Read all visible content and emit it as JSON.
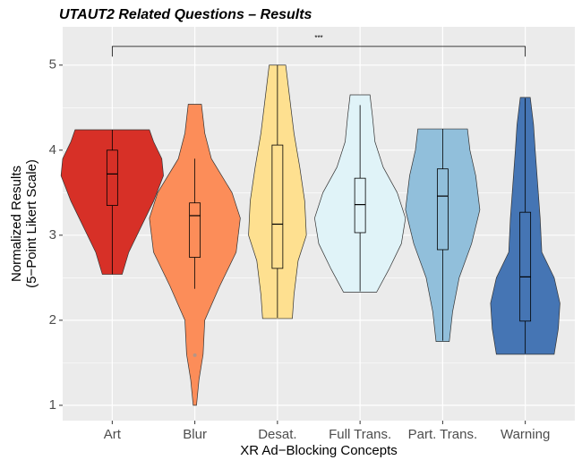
{
  "chart_data": {
    "type": "violin",
    "title": "UTAUT2 Related Questions – Results",
    "xlabel": "XR Ad−Blocking Concepts",
    "ylabel": [
      "Normalized Results",
      "(5−Point Likert Scale)"
    ],
    "categories": [
      "Art",
      "Blur",
      "Desat.",
      "Full Trans.",
      "Part. Trans.",
      "Warning"
    ],
    "ylim": [
      0.82,
      5.45
    ],
    "yticks": [
      1,
      2,
      3,
      4,
      5
    ],
    "grid": true,
    "series": [
      {
        "name": "Art",
        "color": "#d73027",
        "min": 2.54,
        "q1": 3.35,
        "median": 3.72,
        "q3": 4.0,
        "max": 4.24,
        "outliers": [],
        "density_y": [
          2.54,
          2.8,
          3.1,
          3.4,
          3.7,
          3.9,
          4.1,
          4.24
        ],
        "density": [
          0.12,
          0.2,
          0.35,
          0.5,
          0.62,
          0.6,
          0.5,
          0.45
        ]
      },
      {
        "name": "Blur",
        "color": "#fc8d59",
        "min": 2.37,
        "q1": 2.74,
        "median": 3.23,
        "q3": 3.38,
        "max": 3.9,
        "outliers": [
          1.59
        ],
        "density_y": [
          1.0,
          1.3,
          1.6,
          2.0,
          2.4,
          2.8,
          3.2,
          3.5,
          3.9,
          4.2,
          4.54
        ],
        "density": [
          0.02,
          0.05,
          0.1,
          0.12,
          0.3,
          0.5,
          0.55,
          0.45,
          0.2,
          0.12,
          0.08
        ]
      },
      {
        "name": "Desat.",
        "color": "#fee090",
        "min": 2.03,
        "q1": 2.61,
        "median": 3.13,
        "q3": 4.06,
        "max": 5.0,
        "outliers": [],
        "density_y": [
          2.02,
          2.3,
          2.7,
          3.0,
          3.4,
          3.8,
          4.2,
          4.6,
          5.0
        ],
        "density": [
          0.18,
          0.2,
          0.25,
          0.35,
          0.33,
          0.27,
          0.2,
          0.15,
          0.1
        ]
      },
      {
        "name": "Full Trans.",
        "color": "#e0f3f8",
        "min": 2.34,
        "q1": 3.03,
        "median": 3.36,
        "q3": 3.67,
        "max": 4.53,
        "outliers": [],
        "density_y": [
          2.33,
          2.6,
          2.9,
          3.2,
          3.5,
          3.8,
          4.1,
          4.4,
          4.65
        ],
        "density": [
          0.2,
          0.35,
          0.5,
          0.55,
          0.45,
          0.28,
          0.18,
          0.15,
          0.12
        ]
      },
      {
        "name": "Part. Trans.",
        "color": "#91bfdb",
        "min": 1.76,
        "q1": 2.83,
        "median": 3.46,
        "q3": 3.78,
        "max": 4.25,
        "outliers": [],
        "density_y": [
          1.75,
          2.1,
          2.5,
          2.9,
          3.3,
          3.7,
          4.0,
          4.25
        ],
        "density": [
          0.08,
          0.12,
          0.2,
          0.35,
          0.45,
          0.4,
          0.33,
          0.3
        ]
      },
      {
        "name": "Warning",
        "color": "#4575b4",
        "min": 1.61,
        "q1": 1.99,
        "median": 2.51,
        "q3": 3.27,
        "max": 4.61,
        "outliers": [],
        "density_y": [
          1.6,
          1.9,
          2.2,
          2.5,
          2.8,
          3.2,
          3.6,
          4.0,
          4.3,
          4.62
        ],
        "density": [
          0.35,
          0.4,
          0.42,
          0.35,
          0.2,
          0.18,
          0.15,
          0.12,
          0.1,
          0.06
        ]
      }
    ],
    "annotation": {
      "label": "***",
      "from": "Art",
      "to": "Warning",
      "y": 5.22
    }
  }
}
